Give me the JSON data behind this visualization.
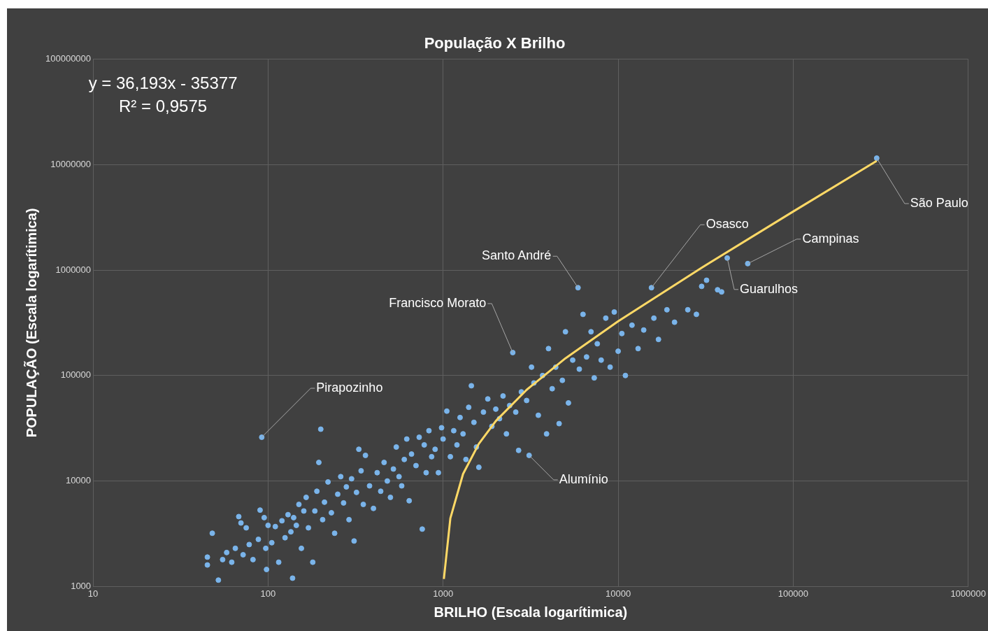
{
  "chart_data": {
    "type": "scatter",
    "title": "População X Brilho",
    "xlabel": "BRILHO (Escala logarítimica)",
    "ylabel": "POPULAÇÃO (Escala logarítimica)",
    "log": "xy",
    "grid": true,
    "legend": false,
    "marker": "circle",
    "xlim": [
      10,
      1000000
    ],
    "xticks": [
      10,
      100,
      1000,
      10000,
      100000,
      1000000
    ],
    "ylim": [
      1000,
      100000000
    ],
    "yticks": [
      1000,
      10000,
      100000,
      1000000,
      10000000,
      100000000
    ],
    "annotations": [
      "y = 36,193x - 35377",
      "R² = 0,9575",
      {
        "text": "Pirapozinho",
        "x": 92,
        "y": 26000
      },
      {
        "text": "Francisco Morato",
        "x": 2500,
        "y": 165000
      },
      {
        "text": "Santo André",
        "x": 5900,
        "y": 680000
      },
      {
        "text": "Osasco",
        "x": 15500,
        "y": 680000
      },
      {
        "text": "Campinas",
        "x": 55000,
        "y": 1150000
      },
      {
        "text": "Guarulhos",
        "x": 42000,
        "y": 1300000
      },
      {
        "text": "São Paulo",
        "x": 300000,
        "y": 11500000
      },
      {
        "text": "Alumínio",
        "x": 3100,
        "y": 17500
      }
    ],
    "series": [
      {
        "color": "#7ab4ea",
        "x": [
          45,
          45,
          48,
          52,
          55,
          58,
          62,
          65,
          68,
          70,
          72,
          75,
          78,
          82,
          88,
          90,
          92,
          95,
          97,
          98,
          100,
          105,
          110,
          115,
          120,
          125,
          130,
          135,
          138,
          140,
          145,
          150,
          155,
          160,
          165,
          170,
          180,
          185,
          190,
          195,
          200,
          205,
          210,
          220,
          230,
          240,
          250,
          260,
          270,
          280,
          290,
          300,
          310,
          320,
          330,
          340,
          350,
          360,
          380,
          400,
          420,
          440,
          460,
          480,
          500,
          520,
          540,
          560,
          580,
          600,
          620,
          640,
          660,
          700,
          730,
          760,
          780,
          800,
          830,
          860,
          900,
          940,
          980,
          1000,
          1050,
          1100,
          1150,
          1200,
          1250,
          1300,
          1350,
          1400,
          1450,
          1500,
          1550,
          1600,
          1700,
          1800,
          1900,
          2000,
          2100,
          2200,
          2300,
          2400,
          2500,
          2600,
          2700,
          2800,
          3000,
          3100,
          3200,
          3300,
          3500,
          3700,
          3900,
          4000,
          4200,
          4400,
          4600,
          4800,
          5000,
          5200,
          5500,
          5900,
          6000,
          6300,
          6600,
          7000,
          7300,
          7600,
          8000,
          8500,
          9000,
          9500,
          10000,
          10500,
          11000,
          12000,
          13000,
          14000,
          15500,
          16000,
          17000,
          19000,
          21000,
          25000,
          28000,
          30000,
          32000,
          37000,
          39000,
          42000,
          55000,
          300000
        ],
        "values": [
          1900,
          1600,
          3200,
          1150,
          1800,
          2100,
          1700,
          2300,
          4600,
          4000,
          2000,
          3600,
          2500,
          1800,
          2800,
          5300,
          26000,
          4500,
          2300,
          1450,
          3800,
          2600,
          3700,
          1700,
          4200,
          2900,
          4800,
          3300,
          1200,
          4500,
          3800,
          6000,
          2300,
          5200,
          7000,
          3600,
          1700,
          5200,
          8000,
          15000,
          31000,
          4300,
          6300,
          9800,
          5000,
          3200,
          7500,
          11000,
          6200,
          8800,
          4300,
          10500,
          2700,
          7800,
          20000,
          12500,
          6000,
          17500,
          9000,
          5500,
          12000,
          8000,
          15000,
          10000,
          7000,
          13000,
          21000,
          11000,
          9000,
          16000,
          25000,
          6500,
          18000,
          14000,
          26000,
          3500,
          22000,
          12000,
          30000,
          17000,
          20000,
          12000,
          32000,
          25000,
          46000,
          17000,
          30000,
          22000,
          40000,
          28000,
          16000,
          50000,
          80000,
          36000,
          21000,
          13500,
          45000,
          60000,
          33000,
          48000,
          39000,
          64000,
          28000,
          52000,
          165000,
          45000,
          19500,
          70000,
          58000,
          17500,
          120000,
          85000,
          42000,
          100000,
          28000,
          180000,
          75000,
          120000,
          35000,
          90000,
          260000,
          55000,
          140000,
          680000,
          115000,
          380000,
          150000,
          260000,
          95000,
          200000,
          140000,
          350000,
          120000,
          400000,
          170000,
          250000,
          100000,
          300000,
          180000,
          270000,
          680000,
          350000,
          220000,
          420000,
          320000,
          420000,
          380000,
          700000,
          800000,
          650000,
          620000,
          1300000,
          1150000,
          11500000
        ]
      },
      {
        "type": "line",
        "color": "#ffd966",
        "marker": "none",
        "x": [
          1010,
          1100,
          1300,
          1600,
          2000,
          3000,
          5000,
          10000,
          30000,
          100000,
          300000
        ],
        "values": [
          1178,
          4435,
          11674,
          22532,
          37009,
          73202,
          145588,
          326553,
          1050413,
          3583923,
          10822523
        ]
      }
    ]
  }
}
